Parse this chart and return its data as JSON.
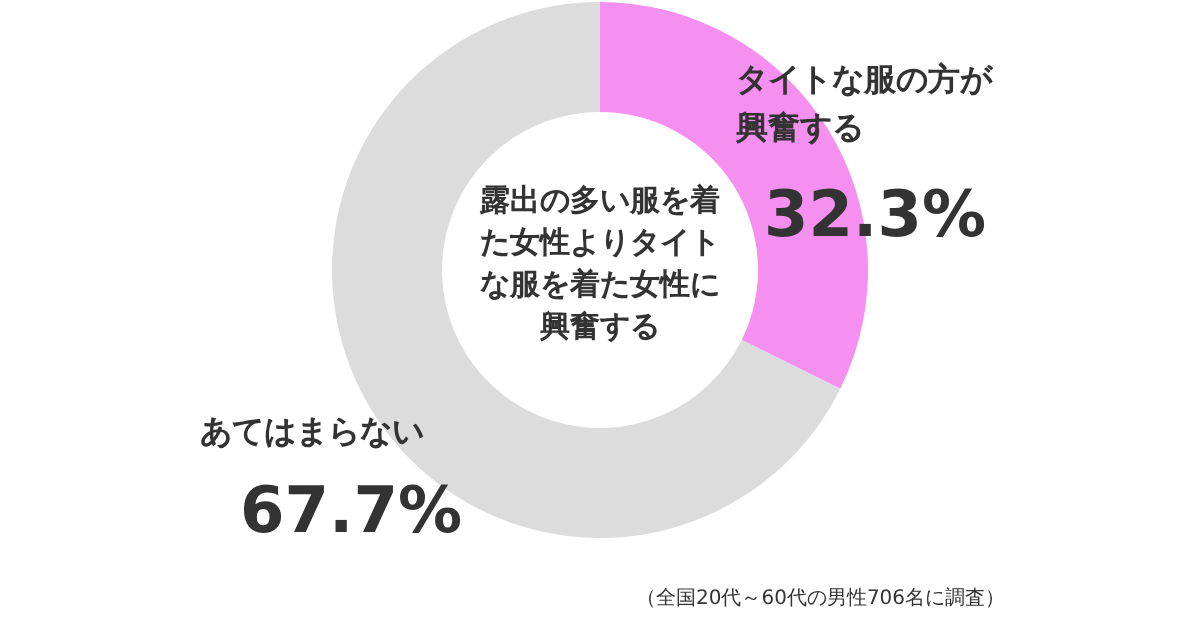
{
  "chart_data": {
    "type": "donut",
    "title": "露出の多い服を着た女性よりタイトな服を着た女性に興奮する",
    "categories": [
      "タイトな服の方が興奮する",
      "あてはまらない"
    ],
    "values": [
      32.3,
      67.7
    ],
    "value_labels": [
      "32.3%",
      "67.7%"
    ],
    "colors": [
      "#f590f0",
      "#dcdcdc"
    ],
    "annotations": [
      "（全国20代～60代の男性706名に調査）"
    ]
  }
}
